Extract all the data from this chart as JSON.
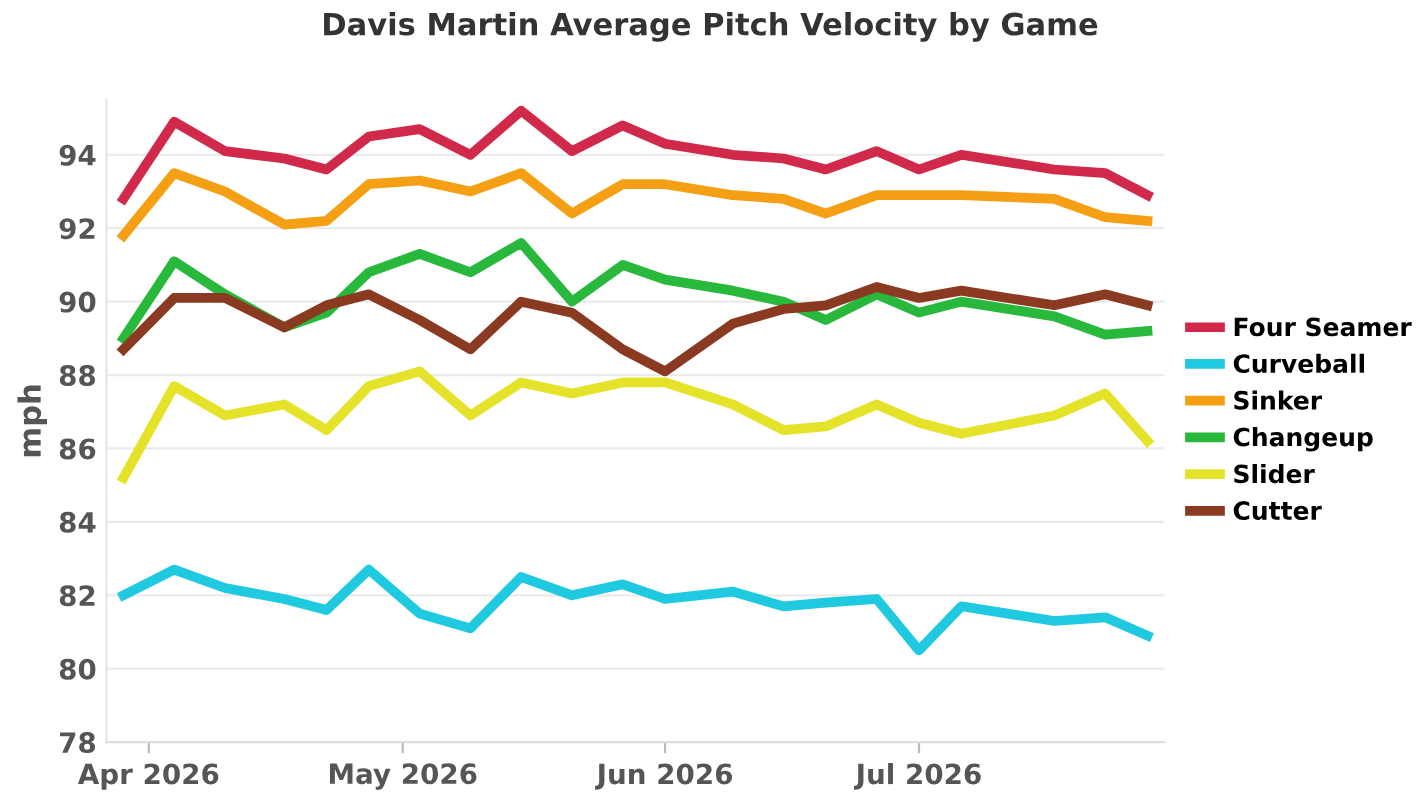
{
  "chart_data": {
    "type": "line",
    "title": "Davis Martin Average Pitch Velocity by Game",
    "ylabel": "mph",
    "x": [
      "2026-03-29",
      "2026-04-04",
      "2026-04-10",
      "2026-04-17",
      "2026-04-22",
      "2026-04-27",
      "2026-05-03",
      "2026-05-09",
      "2026-05-15",
      "2026-05-21",
      "2026-05-27",
      "2026-06-01",
      "2026-06-09",
      "2026-06-15",
      "2026-06-20",
      "2026-06-26",
      "2026-07-01",
      "2026-07-06",
      "2026-07-17",
      "2026-07-23",
      "2026-07-28"
    ],
    "series": [
      {
        "name": "Four Seamer",
        "color": "#d1294a",
        "values": [
          92.8,
          94.9,
          94.1,
          93.9,
          93.6,
          94.5,
          94.7,
          94.0,
          95.2,
          94.1,
          94.8,
          94.3,
          94.0,
          93.9,
          93.6,
          94.1,
          93.6,
          94.0,
          93.6,
          93.5,
          92.9
        ]
      },
      {
        "name": "Curveball",
        "color": "#1fc9e0",
        "values": [
          82.0,
          82.7,
          82.2,
          81.9,
          81.6,
          82.7,
          81.5,
          81.1,
          82.5,
          82.0,
          82.3,
          81.9,
          82.1,
          81.7,
          81.8,
          81.9,
          80.5,
          81.7,
          81.3,
          81.4,
          80.9
        ]
      },
      {
        "name": "Sinker",
        "color": "#f5a014",
        "values": [
          91.8,
          93.5,
          93.0,
          92.1,
          92.2,
          93.2,
          93.3,
          93.0,
          93.5,
          92.4,
          93.2,
          93.2,
          92.9,
          92.8,
          92.4,
          92.9,
          92.9,
          92.9,
          92.8,
          92.3,
          92.2
        ]
      },
      {
        "name": "Changeup",
        "color": "#27b83c",
        "values": [
          89.0,
          91.1,
          90.2,
          89.3,
          89.7,
          90.8,
          91.3,
          90.8,
          91.6,
          90.0,
          91.0,
          90.6,
          90.3,
          90.0,
          89.5,
          90.2,
          89.7,
          90.0,
          89.6,
          89.1,
          89.2
        ]
      },
      {
        "name": "Slider",
        "color": "#e5e22a",
        "values": [
          85.2,
          87.7,
          86.9,
          87.2,
          86.5,
          87.7,
          88.1,
          86.9,
          87.8,
          87.5,
          87.8,
          87.8,
          87.2,
          86.5,
          86.6,
          87.2,
          86.7,
          86.4,
          86.9,
          87.5,
          86.2
        ]
      },
      {
        "name": "Cutter",
        "color": "#8b3a22",
        "values": [
          88.7,
          90.1,
          90.1,
          89.3,
          89.9,
          90.2,
          89.5,
          88.7,
          90.0,
          89.7,
          88.7,
          88.1,
          89.4,
          89.8,
          89.9,
          90.4,
          90.1,
          90.3,
          89.9,
          90.2,
          89.9
        ]
      }
    ],
    "xlim": [
      "2026-03-27",
      "2026-07-30"
    ],
    "xticks": [
      {
        "value": "2026-04-01",
        "label": "Apr 2026"
      },
      {
        "value": "2026-05-01",
        "label": "May 2026"
      },
      {
        "value": "2026-06-01",
        "label": "Jun 2026"
      },
      {
        "value": "2026-07-01",
        "label": "Jul 2026"
      }
    ],
    "ylim": [
      78,
      95.5
    ],
    "yticks": [
      78,
      80,
      82,
      84,
      86,
      88,
      90,
      92,
      94
    ],
    "grid": "y",
    "legend": "right",
    "marker": "none",
    "line_style": "solid"
  }
}
